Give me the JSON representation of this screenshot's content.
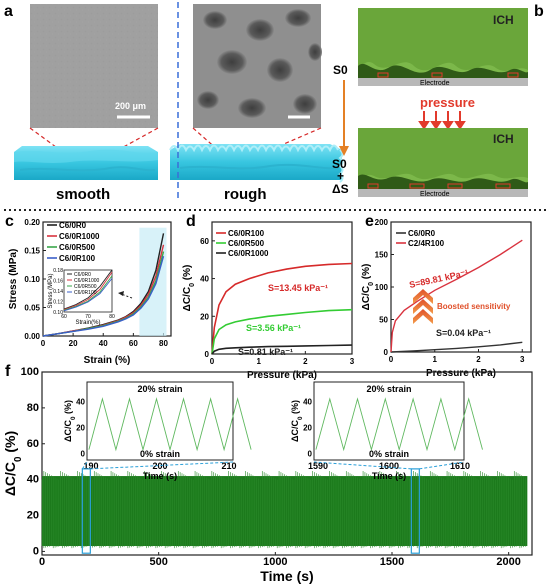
{
  "panels": {
    "a": {
      "letter": "a",
      "smooth_label": "smooth",
      "rough_label": "rough",
      "scale_bar": "200 μm"
    },
    "b": {
      "letter": "b",
      "ich_top": "ICH",
      "ich_bottom": "ICH",
      "electrode_top": "Electrode",
      "electrode_bottom": "Electrode",
      "s0": "S0",
      "s0_bottom": "S0",
      "plus": "+",
      "delta_s": "ΔS",
      "pressure": "pressure",
      "colors": {
        "ich": "#6aa63a",
        "dark": "#2f5a17",
        "pressure": "#e23a2c",
        "arrow": "#e48025"
      }
    }
  },
  "chart_data": [
    {
      "id": "c",
      "letter": "c",
      "type": "line",
      "xlabel": "Strain (%)",
      "ylabel": "Stress (MPa)",
      "xlim": [
        0,
        85
      ],
      "ylim": [
        0,
        0.2
      ],
      "xticks": [
        0,
        20,
        40,
        60,
        80
      ],
      "yticks": [
        0,
        0.05,
        0.1,
        0.15,
        0.2
      ],
      "xtick_labels": [
        "0",
        "20",
        "40",
        "60",
        "80"
      ],
      "ytick_labels": [
        "0.00",
        "0.05",
        "0.10",
        "0.15",
        "0.20"
      ],
      "legend": [
        "C6/0R0",
        "C6/0R1000",
        "C6/0R500",
        "C6/0R100"
      ],
      "series": [
        {
          "name": "C6/0R0",
          "color": "#222222",
          "x": [
            0,
            10,
            20,
            30,
            40,
            50,
            55,
            60,
            65,
            70,
            75,
            80
          ],
          "y": [
            0,
            0.004,
            0.009,
            0.014,
            0.02,
            0.028,
            0.034,
            0.043,
            0.057,
            0.078,
            0.115,
            0.18
          ]
        },
        {
          "name": "C6/0R1000",
          "color": "#d9333f",
          "x": [
            0,
            10,
            20,
            30,
            40,
            50,
            55,
            60,
            65,
            70,
            75,
            80
          ],
          "y": [
            0,
            0.004,
            0.009,
            0.013,
            0.019,
            0.027,
            0.033,
            0.041,
            0.054,
            0.073,
            0.105,
            0.16
          ]
        },
        {
          "name": "C6/0R500",
          "color": "#3aa64a",
          "x": [
            0,
            10,
            20,
            30,
            40,
            50,
            55,
            60,
            65,
            70,
            75,
            80
          ],
          "y": [
            0,
            0.004,
            0.008,
            0.013,
            0.018,
            0.026,
            0.031,
            0.039,
            0.051,
            0.068,
            0.097,
            0.148
          ]
        },
        {
          "name": "C6/0R100",
          "color": "#3a5fc8",
          "x": [
            0,
            10,
            20,
            30,
            40,
            50,
            55,
            60,
            65,
            70,
            75,
            80
          ],
          "y": [
            0,
            0.004,
            0.008,
            0.012,
            0.017,
            0.025,
            0.03,
            0.037,
            0.049,
            0.065,
            0.092,
            0.14
          ]
        }
      ],
      "inset": {
        "xlabel": "Strain(%)",
        "ylabel": "Stress (MPa)",
        "xlim": [
          60,
          80
        ],
        "ylim": [
          0.1,
          0.18
        ],
        "xtick_labels": [
          "60",
          "70",
          "80"
        ],
        "ytick_labels": [
          "0.10",
          "0.12",
          "0.14",
          "0.16",
          "0.18"
        ],
        "legend": [
          "C6/0R0",
          "C6/0R1000",
          "C6/0R500",
          "C6/0R100"
        ]
      }
    },
    {
      "id": "d",
      "letter": "d",
      "type": "line",
      "xlabel": "Pressure (kPa)",
      "ylabel": "ΔC/C0 (%)",
      "xlim": [
        0,
        3
      ],
      "ylim": [
        0,
        70
      ],
      "xticks": [
        0,
        1,
        2,
        3
      ],
      "yticks": [
        0,
        20,
        40,
        60
      ],
      "xtick_labels": [
        "0",
        "1",
        "2",
        "3"
      ],
      "ytick_labels": [
        "0",
        "20",
        "40",
        "60"
      ],
      "legend": [
        "C6/0R100",
        "C6/0R500",
        "C6/0R1000"
      ],
      "annotations": [
        "S=13.45 kPa⁻¹",
        "S=3.56 kPa⁻¹",
        "S=0.81 kPa⁻¹"
      ],
      "series": [
        {
          "name": "C6/0R100",
          "color": "#d62a2a",
          "x": [
            0,
            0.05,
            0.15,
            0.3,
            0.5,
            0.8,
            1.2,
            1.6,
            2.0,
            2.5,
            3.0
          ],
          "y": [
            0,
            14,
            26,
            33,
            37,
            40,
            43,
            45,
            46.5,
            47.5,
            48
          ]
        },
        {
          "name": "C6/0R500",
          "color": "#33cc33",
          "x": [
            0,
            0.05,
            0.15,
            0.3,
            0.5,
            0.8,
            1.2,
            1.6,
            2.0,
            2.5,
            3.0
          ],
          "y": [
            0,
            8,
            13,
            15.5,
            17,
            18.5,
            20,
            21,
            22,
            23,
            23.5
          ]
        },
        {
          "name": "C6/0R1000",
          "color": "#222222",
          "x": [
            0,
            0.05,
            0.15,
            0.3,
            0.5,
            0.8,
            1.2,
            1.6,
            2.0,
            2.5,
            3.0
          ],
          "y": [
            0,
            1.5,
            2.5,
            3,
            3.3,
            3.6,
            3.9,
            4.1,
            4.3,
            4.5,
            4.7
          ]
        }
      ]
    },
    {
      "id": "e",
      "letter": "e",
      "type": "line",
      "xlabel": "Pressure (kPa)",
      "ylabel": "ΔC/C0 (%)",
      "xlim": [
        0,
        3.2
      ],
      "ylim": [
        0,
        200
      ],
      "xticks": [
        0,
        1,
        2,
        3
      ],
      "yticks": [
        0,
        50,
        100,
        150,
        200
      ],
      "xtick_labels": [
        "0",
        "1",
        "2",
        "3"
      ],
      "ytick_labels": [
        "0",
        "50",
        "100",
        "150",
        "200"
      ],
      "legend": [
        "C6/0R0",
        "C2/4R100"
      ],
      "annotations": [
        "S=89.81 kPa⁻¹",
        "Boosted sensitivity",
        "S=0.04 kPa⁻¹"
      ],
      "series": [
        {
          "name": "C6/0R0",
          "color": "#333333",
          "x": [
            0,
            0.5,
            1,
            1.5,
            2,
            2.5,
            3
          ],
          "y": [
            0,
            1.5,
            3.5,
            5.5,
            8,
            11,
            15
          ]
        },
        {
          "name": "C2/4R100",
          "color": "#d9333f",
          "x": [
            0,
            0.03,
            0.1,
            0.3,
            0.6,
            1.0,
            1.5,
            2.0,
            2.5,
            3.0
          ],
          "y": [
            0,
            30,
            48,
            64,
            78,
            95,
            112,
            130,
            150,
            172
          ]
        }
      ]
    },
    {
      "id": "f",
      "letter": "f",
      "type": "line",
      "xlabel": "Time (s)",
      "ylabel": "ΔC/C0 (%)",
      "xlim": [
        0,
        2100
      ],
      "ylim": [
        -2,
        100
      ],
      "xticks": [
        0,
        500,
        1000,
        1500,
        2000
      ],
      "yticks": [
        0,
        20,
        40,
        60,
        80,
        100
      ],
      "xtick_labels": [
        "0",
        "500",
        "1000",
        "1500",
        "2000"
      ],
      "ytick_labels": [
        "0",
        "20",
        "40",
        "60",
        "80",
        "100"
      ],
      "signal": {
        "color": "#1c7a1c",
        "min": 3,
        "max": 42,
        "t_end": 2080
      },
      "insets": [
        {
          "title": "20% strain",
          "bottom_label": "0% strain",
          "xlabel": "Time (s)",
          "ylabel": "ΔC/C0 (%)",
          "xlim": [
            189,
            212
          ],
          "xtick_labels": [
            "190",
            "200",
            "210"
          ],
          "ytick_labels": [
            "0",
            "20",
            "40"
          ],
          "highlight_t": 190
        },
        {
          "title": "20% strain",
          "bottom_label": "0% strain",
          "xlabel": "Time (s)",
          "ylabel": "ΔC/C0 (%)",
          "xlim": [
            1588,
            1612
          ],
          "xtick_labels": [
            "1590",
            "1600",
            "1610"
          ],
          "ytick_labels": [
            "0",
            "20",
            "40"
          ],
          "highlight_t": 1600
        }
      ]
    }
  ]
}
